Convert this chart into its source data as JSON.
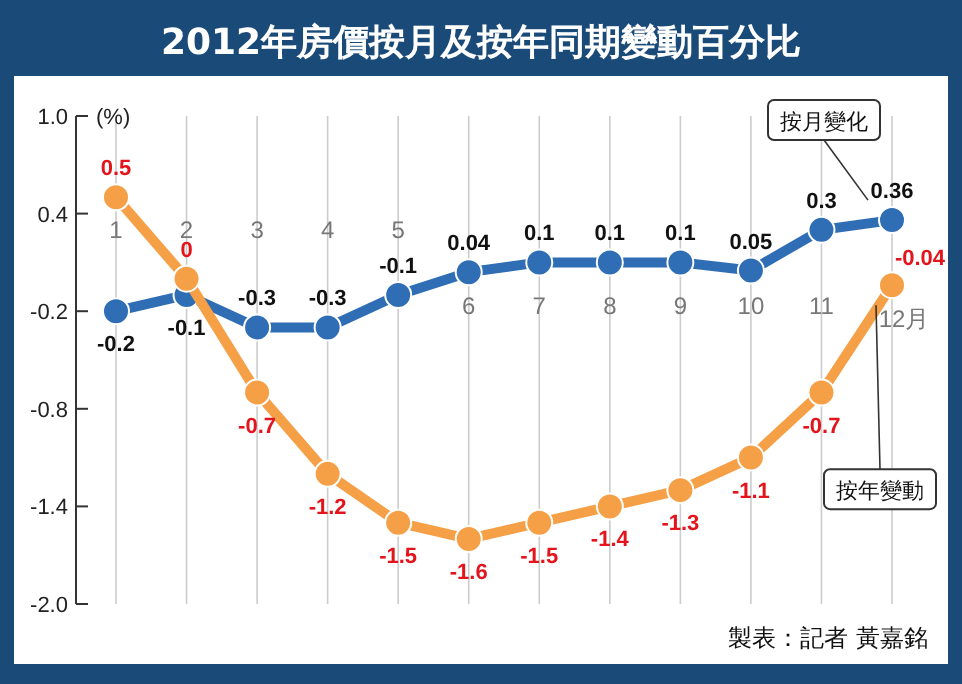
{
  "chart_data": {
    "type": "line",
    "title": "2012年房價按月及按年同期變動百分比",
    "ylabel": "(%)",
    "categories": [
      "1",
      "2",
      "3",
      "4",
      "5",
      "6",
      "7",
      "8",
      "9",
      "10",
      "11",
      "12月"
    ],
    "series": [
      {
        "name": "按月變化",
        "color": "#2f6db5",
        "values": [
          -0.2,
          -0.1,
          -0.3,
          -0.3,
          -0.1,
          0.04,
          0.1,
          0.1,
          0.1,
          0.05,
          0.3,
          0.36
        ]
      },
      {
        "name": "按年變動",
        "color": "#f5a046",
        "values": [
          0.5,
          0,
          -0.7,
          -1.2,
          -1.5,
          -1.6,
          -1.5,
          -1.4,
          -1.3,
          -1.1,
          -0.7,
          -0.04
        ]
      }
    ],
    "ylim": [
      -2,
      1
    ],
    "yticks": [
      {
        "value": 1,
        "label": "1.0"
      },
      0.4,
      -0.2,
      -0.8,
      -1.4,
      {
        "value": -2,
        "label": "-2.0"
      }
    ],
    "grid": "x",
    "marker": "circle",
    "line_style": "solid",
    "data_labels": true,
    "annotations": [
      "製表：記者 黃嘉銘"
    ]
  }
}
